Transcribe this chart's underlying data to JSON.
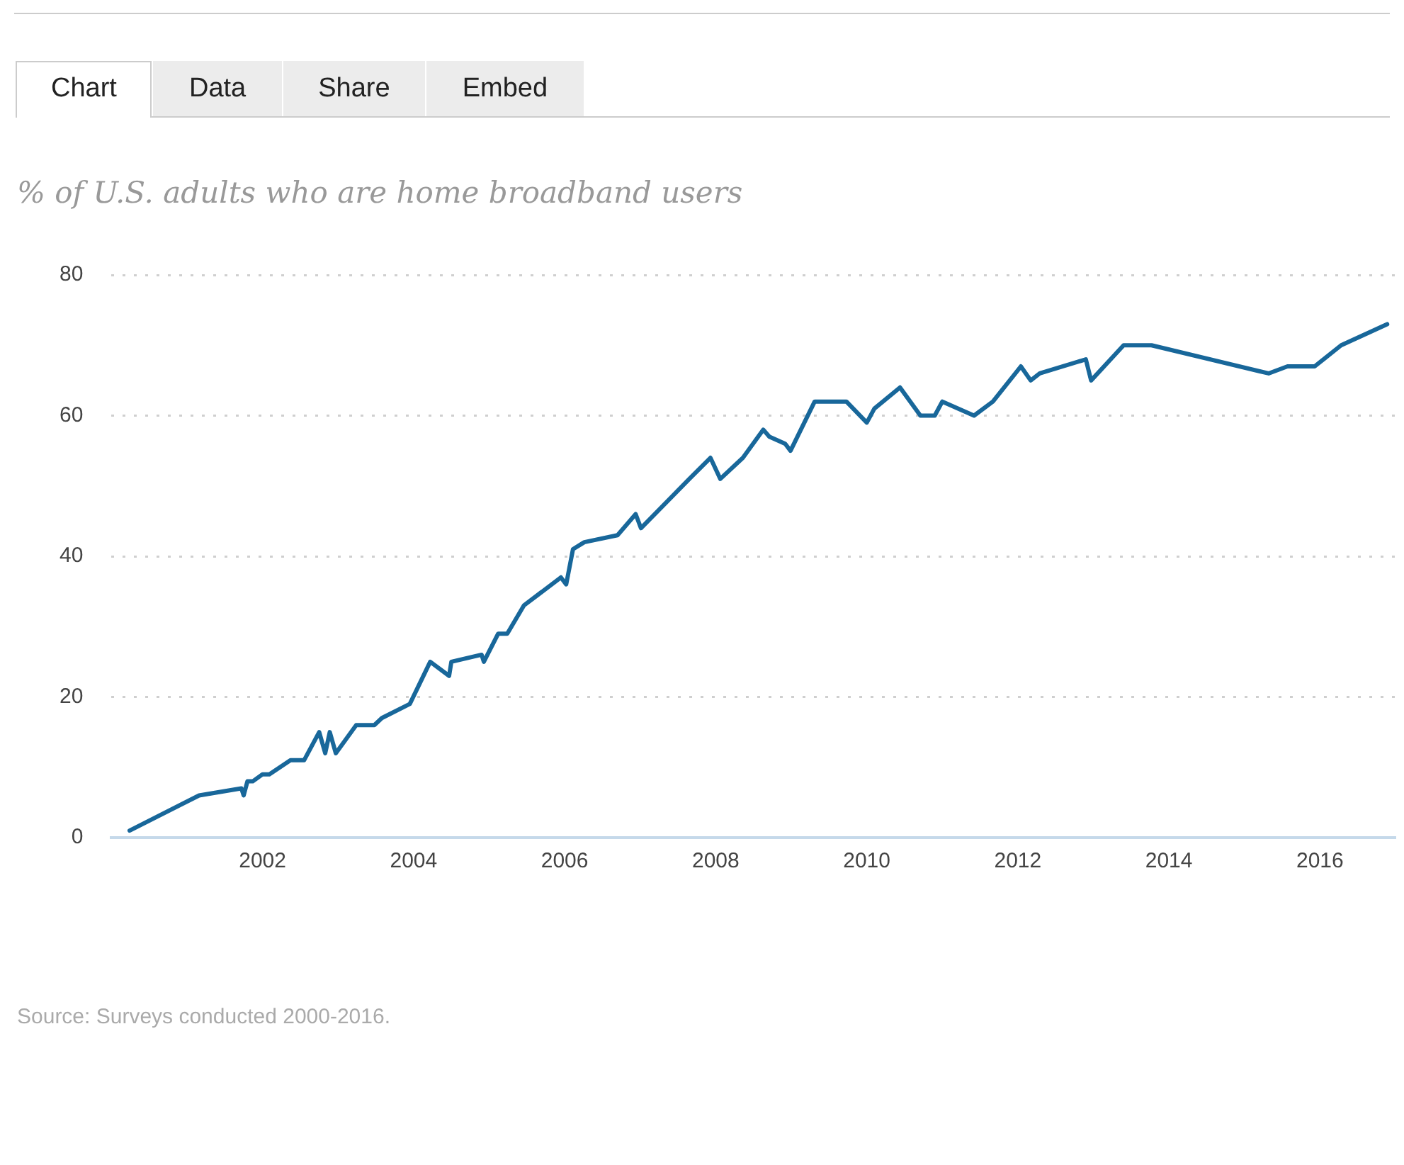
{
  "chart_data": {
    "type": "line",
    "title": "% of U.S. adults who are home broadband users",
    "x": [
      2000.24,
      2001.16,
      2001.72,
      2001.75,
      2001.8,
      2001.87,
      2002.0,
      2002.09,
      2002.37,
      2002.55,
      2002.75,
      2002.83,
      2002.89,
      2002.97,
      2003.24,
      2003.48,
      2003.58,
      2003.95,
      2004.22,
      2004.47,
      2004.5,
      2004.9,
      2004.93,
      2005.12,
      2005.24,
      2005.46,
      2005.95,
      2006.02,
      2006.11,
      2006.26,
      2006.7,
      2006.94,
      2007.01,
      2007.65,
      2007.93,
      2008.06,
      2008.36,
      2008.63,
      2008.71,
      2008.92,
      2008.99,
      2009.31,
      2009.73,
      2010.0,
      2010.1,
      2010.44,
      2010.71,
      2010.9,
      2011.0,
      2011.42,
      2011.67,
      2012.04,
      2012.17,
      2012.29,
      2012.9,
      2012.97,
      2013.4,
      2013.77,
      2015.32,
      2015.57,
      2015.93,
      2016.28,
      2016.89
    ],
    "series": [
      {
        "color": "#18679a",
        "values": [
          1,
          6,
          7,
          6,
          8,
          8,
          9,
          9,
          11,
          11,
          15,
          12,
          15,
          12,
          16,
          16,
          17,
          19,
          25,
          23,
          25,
          26,
          25,
          29,
          29,
          33,
          37,
          36,
          41,
          42,
          43,
          46,
          44,
          51,
          54,
          51,
          54,
          58,
          57,
          56,
          55,
          62,
          62,
          59,
          61,
          64,
          60,
          60,
          62,
          60,
          62,
          67,
          65,
          66,
          68,
          65,
          70,
          70,
          66,
          67,
          67,
          70,
          73
        ]
      }
    ],
    "xlim": [
      2000,
      2017
    ],
    "xticks": [
      2002,
      2004,
      2006,
      2008,
      2010,
      2012,
      2014,
      2016
    ],
    "ylim": [
      0,
      80
    ],
    "yticks": [
      0,
      20,
      40,
      60,
      80
    ],
    "grid": "y",
    "legend": false,
    "marker": "none",
    "line_style": "solid",
    "annotations": [
      "Chart",
      "Data",
      "Share",
      "Embed",
      "Source: Surveys conducted 2000-2016."
    ]
  }
}
